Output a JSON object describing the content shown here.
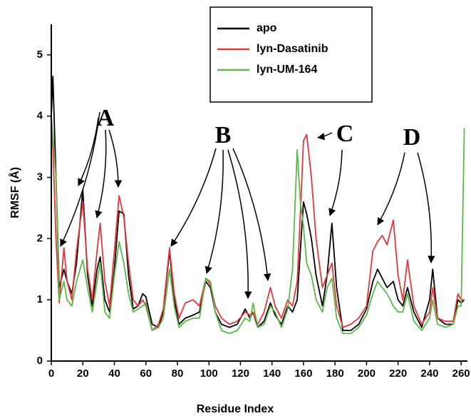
{
  "chart_data": {
    "type": "line",
    "xlabel": "Residue Index",
    "ylabel": "RMSF (Å)",
    "xlim": [
      0,
      264
    ],
    "ylim": [
      0,
      5.5
    ],
    "xticks": [
      0,
      20,
      40,
      60,
      80,
      100,
      120,
      140,
      160,
      180,
      200,
      220,
      240,
      260
    ],
    "yticks": [
      0,
      1,
      2,
      3,
      4,
      5
    ],
    "annotations": [
      "A",
      "B",
      "C",
      "D"
    ],
    "legend": "top-right",
    "x": [
      0,
      1,
      3,
      5,
      8,
      10,
      13,
      16,
      20,
      23,
      26,
      29,
      31,
      34,
      37,
      40,
      43,
      46,
      49,
      52,
      55,
      58,
      60,
      64,
      68,
      71,
      75,
      78,
      81,
      85,
      90,
      94,
      98,
      101,
      104,
      108,
      113,
      118,
      123,
      126,
      128,
      131,
      135,
      139,
      142,
      146,
      150,
      153,
      156,
      158,
      160,
      162,
      165,
      168,
      172,
      175,
      178,
      181,
      185,
      190,
      195,
      200,
      204,
      207,
      210,
      213,
      217,
      220,
      223,
      226,
      230,
      235,
      240,
      242,
      245,
      250,
      255,
      258,
      260,
      262
    ],
    "series": [
      {
        "name": "apo",
        "color": "#000000",
        "values": [
          4.0,
          4.65,
          3.0,
          1.2,
          1.5,
          1.3,
          1.1,
          1.6,
          2.8,
          1.4,
          0.9,
          1.5,
          1.7,
          1.0,
          0.8,
          1.5,
          2.45,
          2.4,
          1.4,
          0.85,
          0.9,
          1.1,
          1.05,
          0.6,
          0.55,
          0.8,
          1.8,
          1.0,
          0.6,
          0.7,
          0.75,
          0.8,
          1.3,
          1.2,
          0.8,
          0.6,
          0.55,
          0.6,
          0.85,
          0.7,
          0.8,
          0.55,
          0.65,
          0.95,
          0.75,
          0.6,
          0.9,
          0.8,
          1.0,
          1.8,
          2.6,
          2.4,
          2.0,
          1.4,
          0.9,
          1.4,
          2.25,
          1.2,
          0.5,
          0.5,
          0.6,
          0.85,
          1.3,
          1.5,
          1.35,
          1.2,
          1.3,
          1.0,
          0.9,
          1.2,
          0.8,
          0.55,
          1.0,
          1.5,
          0.7,
          0.6,
          0.6,
          1.0,
          0.95,
          1.0
        ]
      },
      {
        "name": "lyn-Dasatinib",
        "color": "#e8353b",
        "values": [
          3.9,
          3.5,
          2.0,
          0.95,
          1.85,
          1.3,
          1.0,
          1.8,
          2.6,
          1.5,
          1.0,
          1.8,
          2.25,
          1.3,
          0.9,
          1.8,
          2.7,
          2.35,
          1.6,
          1.0,
          0.9,
          1.0,
          0.9,
          0.5,
          0.6,
          0.85,
          1.85,
          1.1,
          0.7,
          0.95,
          1.0,
          0.9,
          1.35,
          1.25,
          0.9,
          0.7,
          0.6,
          0.65,
          0.8,
          0.75,
          0.8,
          0.6,
          0.8,
          1.2,
          0.9,
          0.7,
          1.0,
          0.9,
          1.3,
          2.4,
          3.6,
          3.7,
          3.0,
          2.0,
          1.2,
          1.4,
          1.6,
          0.9,
          0.55,
          0.6,
          0.7,
          0.9,
          1.8,
          1.95,
          2.05,
          1.9,
          2.3,
          1.4,
          1.0,
          1.65,
          0.9,
          0.6,
          0.8,
          1.2,
          0.7,
          0.65,
          0.65,
          1.1,
          1.0,
          1.0
        ]
      },
      {
        "name": "lyn-UM-164",
        "color": "#5cb848",
        "values": [
          4.0,
          3.7,
          3.0,
          1.0,
          1.3,
          1.0,
          0.9,
          1.3,
          1.65,
          1.2,
          0.8,
          1.3,
          1.6,
          0.8,
          0.7,
          1.4,
          1.95,
          1.6,
          1.1,
          0.8,
          0.85,
          0.9,
          0.95,
          0.5,
          0.55,
          0.7,
          1.5,
          0.9,
          0.55,
          0.65,
          0.7,
          0.7,
          1.35,
          1.3,
          0.8,
          0.5,
          0.45,
          0.5,
          0.7,
          0.65,
          0.95,
          0.55,
          0.6,
          0.9,
          0.8,
          0.55,
          0.85,
          1.5,
          3.45,
          2.6,
          2.2,
          1.6,
          1.4,
          1.0,
          0.8,
          1.2,
          1.35,
          0.7,
          0.45,
          0.45,
          0.55,
          0.75,
          1.1,
          1.3,
          1.2,
          1.1,
          0.9,
          0.8,
          0.8,
          1.1,
          0.65,
          0.5,
          0.7,
          1.0,
          0.6,
          0.55,
          0.6,
          0.9,
          0.9,
          3.8
        ]
      }
    ]
  }
}
